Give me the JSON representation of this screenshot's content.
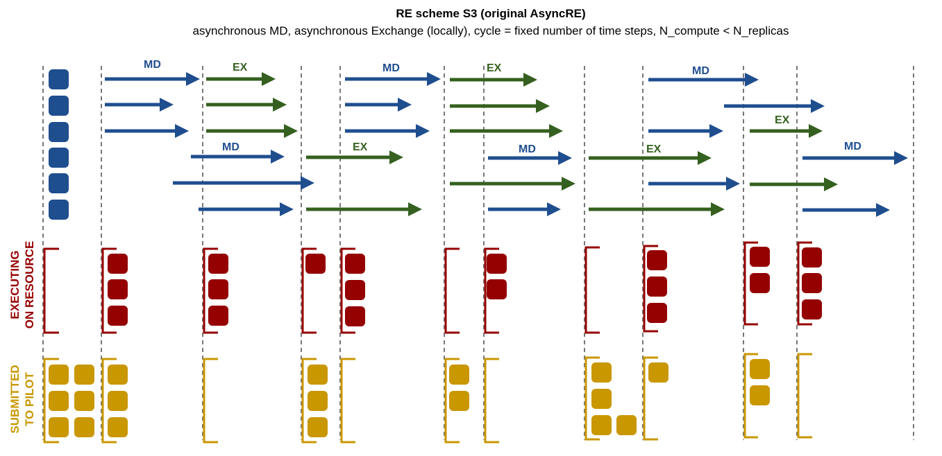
{
  "title": "RE scheme S3 (original AsyncRE)",
  "subtitle": "asynchronous MD, asynchronous Exchange (locally), cycle = fixed number of time steps, N_compute < N_replicas",
  "labels": {
    "md": "MD",
    "ex": "EX"
  },
  "side_labels": {
    "executing_line1": "EXECUTING",
    "executing_line2": "ON RESOURCE",
    "submitted_line1": "SUBMITTED",
    "submitted_line2": "TO PILOT"
  },
  "replica_count": 6,
  "colors": {
    "md": "#1f4e8f",
    "ex": "#35601f",
    "executing": "#950000",
    "submitted": "#c99700",
    "dash": "#777777"
  }
}
